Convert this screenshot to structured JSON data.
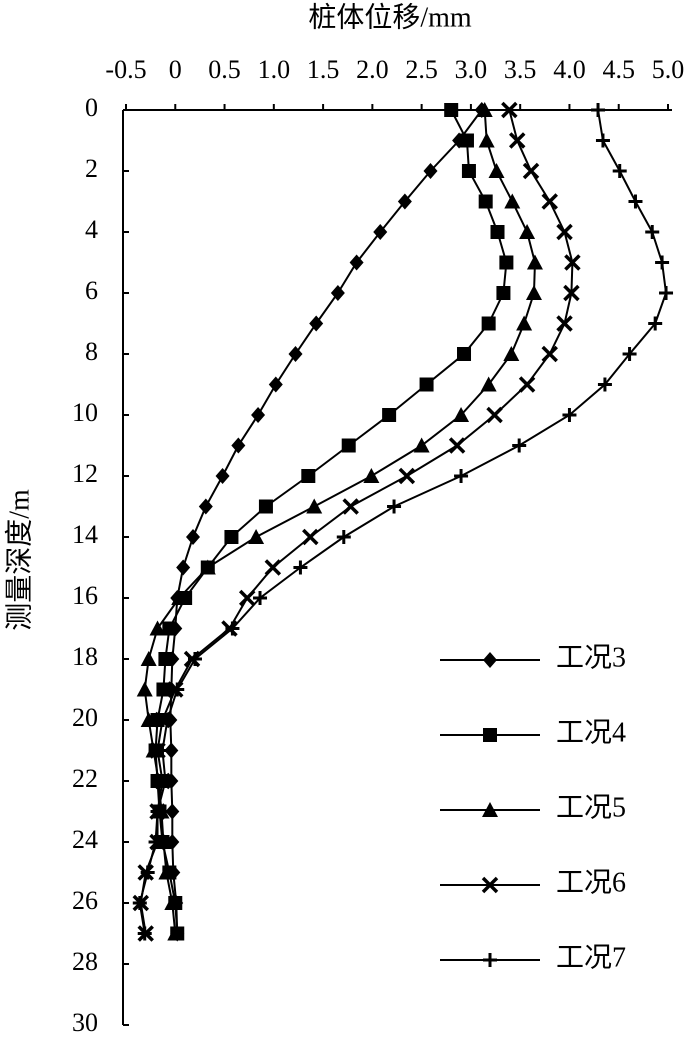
{
  "chart_data": {
    "type": "line",
    "x_label": "桩体位移/mm",
    "y_label": "测量深度/m",
    "xlim": [
      -0.5,
      5.0
    ],
    "xticks": [
      -0.5,
      0,
      0.5,
      {
        "value": 1,
        "label": "1.0"
      },
      1.5,
      {
        "value": 2,
        "label": "2.0"
      },
      2.5,
      {
        "value": 3,
        "label": "3.0"
      },
      3.5,
      {
        "value": 4,
        "label": "4.0"
      },
      4.5,
      {
        "value": 5,
        "label": "5.0"
      }
    ],
    "ylim": [
      0,
      30
    ],
    "y_inverted": true,
    "yticks": [
      0,
      2,
      4,
      6,
      8,
      10,
      12,
      14,
      16,
      18,
      20,
      22,
      24,
      26,
      28,
      30
    ],
    "y": [
      0,
      1,
      2,
      3,
      4,
      5,
      6,
      7,
      8,
      9,
      10,
      11,
      12,
      13,
      14,
      15,
      16,
      17,
      18,
      19,
      20,
      21,
      22,
      23,
      24,
      25,
      26,
      27
    ],
    "grid": false,
    "legend": "lower right",
    "series": [
      {
        "name": "工况3",
        "color": "#000000",
        "marker": "diamond",
        "values": [
          3.11,
          2.88,
          2.59,
          2.33,
          2.08,
          1.84,
          1.65,
          1.43,
          1.22,
          1.02,
          0.84,
          0.64,
          0.48,
          0.31,
          0.18,
          0.08,
          0.02,
          0,
          -0.03,
          -0.04,
          -0.05,
          -0.04,
          -0.04,
          -0.03,
          -0.03,
          -0.02,
          0.01,
          0.02
        ]
      },
      {
        "name": "工况4",
        "color": "#000000",
        "marker": "square",
        "values": [
          2.8,
          2.96,
          2.98,
          3.15,
          3.27,
          3.36,
          3.33,
          3.18,
          2.93,
          2.55,
          2.17,
          1.76,
          1.35,
          0.92,
          0.57,
          0.33,
          0.1,
          -0.06,
          -0.1,
          -0.12,
          -0.18,
          -0.2,
          -0.18,
          -0.16,
          -0.13,
          -0.06,
          0,
          0.02
        ]
      },
      {
        "name": "工况5",
        "color": "#000000",
        "marker": "triangle",
        "values": [
          3.14,
          3.16,
          3.26,
          3.42,
          3.57,
          3.65,
          3.64,
          3.54,
          3.41,
          3.18,
          2.9,
          2.5,
          1.99,
          1.41,
          0.82,
          0.33,
          0.04,
          -0.18,
          -0.27,
          -0.31,
          -0.27,
          -0.22,
          -0.17,
          -0.14,
          -0.12,
          -0.09,
          -0.03,
          0
        ]
      },
      {
        "name": "工况6",
        "color": "#000000",
        "marker": "x",
        "values": [
          3.39,
          3.47,
          3.61,
          3.8,
          3.95,
          4.03,
          4.02,
          3.95,
          3.8,
          3.57,
          3.24,
          2.86,
          2.35,
          1.78,
          1.37,
          0.99,
          0.73,
          0.55,
          0.17,
          0,
          -0.13,
          -0.18,
          -0.13,
          -0.18,
          -0.18,
          -0.3,
          -0.35,
          -0.3
        ]
      },
      {
        "name": "工况7",
        "color": "#000000",
        "marker": "plus",
        "values": [
          4.29,
          4.34,
          4.51,
          4.67,
          4.84,
          4.94,
          4.98,
          4.87,
          4.61,
          4.36,
          4.0,
          3.49,
          2.9,
          2.22,
          1.71,
          1.27,
          0.86,
          0.58,
          0.2,
          0.02,
          -0.08,
          -0.13,
          -0.1,
          -0.18,
          -0.2,
          -0.28,
          -0.36,
          -0.31
        ]
      }
    ]
  }
}
